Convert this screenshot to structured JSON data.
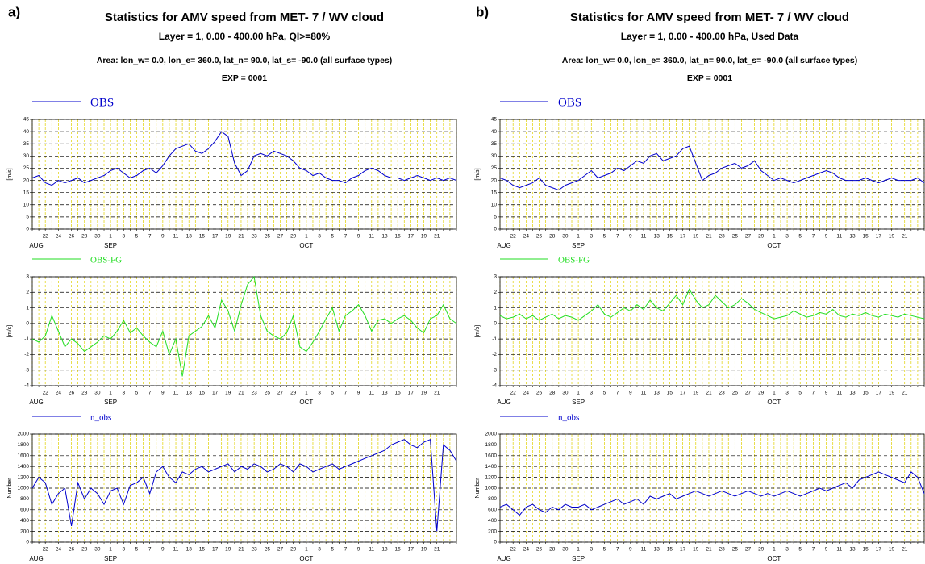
{
  "chart_data": [
    {
      "type": "line",
      "panel": "a)",
      "title": "Statistics for AMV speed from  MET- 7 / WV cloud",
      "subtitles": [
        "Layer =  1, 0.00 - 400.00 hPa, QI>=80%",
        "Area: lon_w=   0.0, lon_e= 360.0, lat_n=  90.0, lat_s= -90.0 (all surface types)",
        "EXP = 0001"
      ],
      "ylabel": "[m/s]",
      "categories": [
        null,
        null,
        "22",
        null,
        "24",
        null,
        "26",
        null,
        "28",
        null,
        "30",
        null,
        "1",
        null,
        "3",
        null,
        "5",
        null,
        "7",
        null,
        "9",
        null,
        "11",
        null,
        "13",
        null,
        "15",
        null,
        "17",
        null,
        "19",
        null,
        "21",
        null,
        "23",
        null,
        "25",
        null,
        "27",
        null,
        "29",
        null,
        "1",
        null,
        "3",
        null,
        "5",
        null,
        "7",
        null,
        "9",
        null,
        "11",
        null,
        "13",
        null,
        "15",
        null,
        "17",
        null,
        "19",
        null,
        "21",
        null,
        null,
        null
      ],
      "months": [
        {
          "value": 0,
          "label": "AUG"
        },
        {
          "value": 12,
          "label": "SEP"
        },
        {
          "value": 42,
          "label": "OCT"
        }
      ],
      "ylim": [
        0,
        45
      ],
      "yticks": [
        0,
        5,
        10,
        15,
        20,
        25,
        30,
        35,
        40,
        45
      ],
      "grid": true,
      "series": [
        {
          "name": "OBS",
          "color": "#0000cc",
          "values": [
            21,
            22,
            19,
            18,
            20,
            19,
            20,
            21,
            19,
            20,
            21,
            22,
            24,
            25,
            23,
            21,
            22,
            24,
            25,
            23,
            26,
            30,
            33,
            34,
            35,
            32,
            31,
            33,
            36,
            40,
            38,
            27,
            22,
            24,
            30,
            31,
            30,
            32,
            31,
            30,
            28,
            25,
            24,
            22,
            23,
            21,
            20,
            20,
            19,
            21,
            22,
            24,
            25,
            24,
            22,
            21,
            21,
            20,
            21,
            22,
            21,
            20,
            21,
            20,
            21,
            20
          ]
        }
      ]
    },
    {
      "type": "line",
      "ylabel": "[m/s]",
      "categories": [
        null,
        null,
        "22",
        null,
        "24",
        null,
        "26",
        null,
        "28",
        null,
        "30",
        null,
        "1",
        null,
        "3",
        null,
        "5",
        null,
        "7",
        null,
        "9",
        null,
        "11",
        null,
        "13",
        null,
        "15",
        null,
        "17",
        null,
        "19",
        null,
        "21",
        null,
        "23",
        null,
        "25",
        null,
        "27",
        null,
        "29",
        null,
        "1",
        null,
        "3",
        null,
        "5",
        null,
        "7",
        null,
        "9",
        null,
        "11",
        null,
        "13",
        null,
        "15",
        null,
        "17",
        null,
        "19",
        null,
        "21",
        null,
        null,
        null
      ],
      "months": [
        {
          "value": 0,
          "label": "AUG"
        },
        {
          "value": 12,
          "label": "SEP"
        },
        {
          "value": 42,
          "label": "OCT"
        }
      ],
      "ylim": [
        -4,
        3
      ],
      "yticks": [
        -4,
        -3,
        -2,
        -1,
        0,
        1,
        2,
        3
      ],
      "grid": true,
      "series": [
        {
          "name": "OBS-FG",
          "color": "#22dd22",
          "values": [
            -1,
            -1.2,
            -0.8,
            0.5,
            -0.5,
            -1.5,
            -1,
            -1.3,
            -1.8,
            -1.5,
            -1.2,
            -0.8,
            -1,
            -0.5,
            0.2,
            -0.6,
            -0.3,
            -0.8,
            -1.2,
            -1.5,
            -0.5,
            -2,
            -1,
            -3.4,
            -0.8,
            -0.5,
            -0.2,
            0.5,
            -0.3,
            1.5,
            0.8,
            -0.5,
            1.2,
            2.5,
            3,
            0.5,
            -0.5,
            -0.8,
            -1,
            -0.6,
            0.5,
            -1.5,
            -1.8,
            -1.2,
            -0.5,
            0.3,
            1,
            -0.5,
            0.5,
            0.8,
            1.2,
            0.5,
            -0.5,
            0.2,
            0.3,
            0,
            0.3,
            0.5,
            0.2,
            -0.3,
            -0.6,
            0.3,
            0.5,
            1.2,
            0.3,
            0
          ]
        }
      ]
    },
    {
      "type": "line",
      "ylabel": "Number",
      "categories": [
        null,
        null,
        "22",
        null,
        "24",
        null,
        "26",
        null,
        "28",
        null,
        "30",
        null,
        "1",
        null,
        "3",
        null,
        "5",
        null,
        "7",
        null,
        "9",
        null,
        "11",
        null,
        "13",
        null,
        "15",
        null,
        "17",
        null,
        "19",
        null,
        "21",
        null,
        "23",
        null,
        "25",
        null,
        "27",
        null,
        "29",
        null,
        "1",
        null,
        "3",
        null,
        "5",
        null,
        "7",
        null,
        "9",
        null,
        "11",
        null,
        "13",
        null,
        "15",
        null,
        "17",
        null,
        "19",
        null,
        "21",
        null,
        null,
        null
      ],
      "months": [
        {
          "value": 0,
          "label": "AUG"
        },
        {
          "value": 12,
          "label": "SEP"
        },
        {
          "value": 42,
          "label": "OCT"
        }
      ],
      "ylim": [
        0,
        2000
      ],
      "yticks": [
        0,
        200,
        400,
        600,
        800,
        1000,
        1200,
        1400,
        1600,
        1800,
        2000
      ],
      "grid": true,
      "series": [
        {
          "name": "n_obs",
          "color": "#0000cc",
          "values": [
            1000,
            1200,
            1100,
            700,
            900,
            1000,
            300,
            1100,
            800,
            1000,
            900,
            700,
            950,
            1000,
            700,
            1050,
            1100,
            1200,
            900,
            1300,
            1400,
            1200,
            1100,
            1300,
            1250,
            1350,
            1400,
            1300,
            1350,
            1400,
            1450,
            1300,
            1400,
            1350,
            1450,
            1400,
            1300,
            1350,
            1450,
            1400,
            1300,
            1450,
            1400,
            1300,
            1350,
            1400,
            1450,
            1350,
            1400,
            1450,
            1500,
            1550,
            1600,
            1650,
            1700,
            1800,
            1850,
            1900,
            1800,
            1750,
            1850,
            1900,
            200,
            1800,
            1700,
            1500
          ]
        }
      ]
    },
    {
      "type": "line",
      "panel": "b)",
      "title": "Statistics for AMV speed from  MET- 7 / WV cloud",
      "subtitles": [
        "Layer =  1, 0.00 - 400.00 hPa, Used Data",
        "Area: lon_w=   0.0, lon_e= 360.0, lat_n=  90.0, lat_s= -90.0 (all surface types)",
        "EXP = 0001"
      ],
      "ylabel": "[m/s]",
      "categories": [
        null,
        null,
        "22",
        null,
        "24",
        null,
        "26",
        null,
        "28",
        null,
        "30",
        null,
        "1",
        null,
        "3",
        null,
        "5",
        null,
        "7",
        null,
        "9",
        null,
        "11",
        null,
        "13",
        null,
        "15",
        null,
        "17",
        null,
        "19",
        null,
        "21",
        null,
        "23",
        null,
        "25",
        null,
        "27",
        null,
        "29",
        null,
        "1",
        null,
        "3",
        null,
        "5",
        null,
        "7",
        null,
        "9",
        null,
        "11",
        null,
        "13",
        null,
        "15",
        null,
        "17",
        null,
        "19",
        null,
        "21",
        null,
        null,
        null
      ],
      "months": [
        {
          "value": 0,
          "label": "AUG"
        },
        {
          "value": 12,
          "label": "SEP"
        },
        {
          "value": 42,
          "label": "OCT"
        }
      ],
      "ylim": [
        0,
        45
      ],
      "yticks": [
        0,
        5,
        10,
        15,
        20,
        25,
        30,
        35,
        40,
        45
      ],
      "grid": true,
      "series": [
        {
          "name": "OBS",
          "color": "#0000cc",
          "values": [
            21,
            20,
            18,
            17,
            18,
            19,
            21,
            18,
            17,
            16,
            18,
            19,
            20,
            22,
            24,
            21,
            22,
            23,
            25,
            24,
            26,
            28,
            27,
            30,
            31,
            28,
            29,
            30,
            33,
            34,
            27,
            20,
            22,
            23,
            25,
            26,
            27,
            25,
            26,
            28,
            24,
            22,
            20,
            21,
            20,
            19,
            20,
            21,
            22,
            23,
            24,
            23,
            21,
            20,
            20,
            20,
            21,
            20,
            19,
            20,
            21,
            20,
            20,
            20,
            21,
            19
          ]
        }
      ]
    },
    {
      "type": "line",
      "ylabel": "[m/s]",
      "categories": [
        null,
        null,
        "22",
        null,
        "24",
        null,
        "26",
        null,
        "28",
        null,
        "30",
        null,
        "1",
        null,
        "3",
        null,
        "5",
        null,
        "7",
        null,
        "9",
        null,
        "11",
        null,
        "13",
        null,
        "15",
        null,
        "17",
        null,
        "19",
        null,
        "21",
        null,
        "23",
        null,
        "25",
        null,
        "27",
        null,
        "29",
        null,
        "1",
        null,
        "3",
        null,
        "5",
        null,
        "7",
        null,
        "9",
        null,
        "11",
        null,
        "13",
        null,
        "15",
        null,
        "17",
        null,
        "19",
        null,
        "21",
        null,
        null,
        null
      ],
      "months": [
        {
          "value": 0,
          "label": "AUG"
        },
        {
          "value": 12,
          "label": "SEP"
        },
        {
          "value": 42,
          "label": "OCT"
        }
      ],
      "ylim": [
        -4,
        3
      ],
      "yticks": [
        -4,
        -3,
        -2,
        -1,
        0,
        1,
        2,
        3
      ],
      "grid": true,
      "series": [
        {
          "name": "OBS-FG",
          "color": "#22dd22",
          "values": [
            0.5,
            0.3,
            0.4,
            0.6,
            0.3,
            0.5,
            0.2,
            0.4,
            0.6,
            0.3,
            0.5,
            0.4,
            0.2,
            0.5,
            0.8,
            1.2,
            0.6,
            0.4,
            0.7,
            1,
            0.8,
            1.2,
            0.9,
            1.5,
            1,
            0.8,
            1.3,
            1.8,
            1.2,
            2.2,
            1.5,
            1,
            1.2,
            1.8,
            1.4,
            1,
            1.2,
            1.6,
            1.3,
            0.9,
            0.7,
            0.5,
            0.3,
            0.4,
            0.5,
            0.8,
            0.6,
            0.4,
            0.5,
            0.7,
            0.6,
            0.9,
            0.5,
            0.4,
            0.6,
            0.5,
            0.7,
            0.5,
            0.4,
            0.6,
            0.5,
            0.4,
            0.6,
            0.5,
            0.4,
            0.3
          ]
        }
      ]
    },
    {
      "type": "line",
      "ylabel": "Number",
      "categories": [
        null,
        null,
        "22",
        null,
        "24",
        null,
        "26",
        null,
        "28",
        null,
        "30",
        null,
        "1",
        null,
        "3",
        null,
        "5",
        null,
        "7",
        null,
        "9",
        null,
        "11",
        null,
        "13",
        null,
        "15",
        null,
        "17",
        null,
        "19",
        null,
        "21",
        null,
        "23",
        null,
        "25",
        null,
        "27",
        null,
        "29",
        null,
        "1",
        null,
        "3",
        null,
        "5",
        null,
        "7",
        null,
        "9",
        null,
        "11",
        null,
        "13",
        null,
        "15",
        null,
        "17",
        null,
        "19",
        null,
        "21",
        null,
        null,
        null
      ],
      "months": [
        {
          "value": 0,
          "label": "AUG"
        },
        {
          "value": 12,
          "label": "SEP"
        },
        {
          "value": 42,
          "label": "OCT"
        }
      ],
      "ylim": [
        0,
        2000
      ],
      "yticks": [
        0,
        200,
        400,
        600,
        800,
        1000,
        1200,
        1400,
        1600,
        1800,
        2000
      ],
      "grid": true,
      "series": [
        {
          "name": "n_obs",
          "color": "#0000cc",
          "values": [
            650,
            700,
            600,
            500,
            650,
            700,
            600,
            550,
            650,
            600,
            700,
            650,
            650,
            700,
            600,
            650,
            700,
            750,
            800,
            700,
            750,
            800,
            700,
            850,
            800,
            850,
            900,
            800,
            850,
            900,
            950,
            900,
            850,
            900,
            950,
            900,
            850,
            900,
            950,
            900,
            850,
            900,
            850,
            900,
            950,
            900,
            850,
            900,
            950,
            1000,
            950,
            1000,
            1050,
            1100,
            1000,
            1150,
            1200,
            1250,
            1300,
            1250,
            1200,
            1150,
            1100,
            1300,
            1200,
            900
          ]
        }
      ]
    }
  ]
}
